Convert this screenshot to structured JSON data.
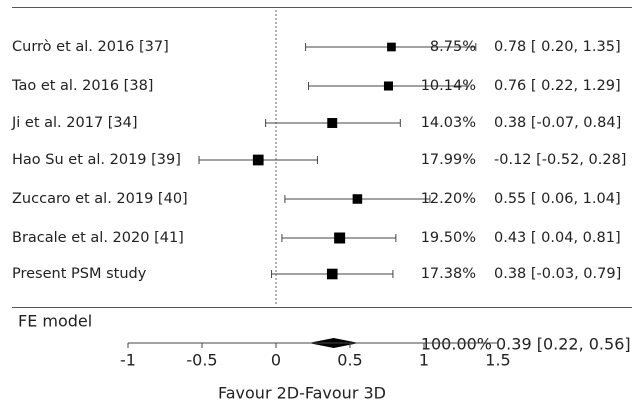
{
  "chart_data": {
    "type": "forest",
    "studies": [
      {
        "label": "Currò et al. 2016 [37]",
        "weight": "8.75%",
        "ci_text": "0.78 [ 0.20, 1.35]",
        "estimate": 0.78,
        "lower": 0.2,
        "upper": 1.35
      },
      {
        "label": "Tao et al. 2016 [38]",
        "weight": "10.14%",
        "ci_text": "0.76 [ 0.22, 1.29]",
        "estimate": 0.76,
        "lower": 0.22,
        "upper": 1.29
      },
      {
        "label": "Ji et al. 2017 [34]",
        "weight": "14.03%",
        "ci_text": "0.38 [-0.07, 0.84]",
        "estimate": 0.38,
        "lower": -0.07,
        "upper": 0.84
      },
      {
        "label": "Hao Su et al. 2019 [39]",
        "weight": "17.99%",
        "ci_text": "-0.12 [-0.52, 0.28]",
        "estimate": -0.12,
        "lower": -0.52,
        "upper": 0.28
      },
      {
        "label": "Zuccaro et al. 2019 [40]",
        "weight": "12.20%",
        "ci_text": "0.55 [ 0.06, 1.04]",
        "estimate": 0.55,
        "lower": 0.06,
        "upper": 1.04
      },
      {
        "label": "Bracale et al. 2020 [41]",
        "weight": "19.50%",
        "ci_text": "0.43 [ 0.04, 0.81]",
        "estimate": 0.43,
        "lower": 0.04,
        "upper": 0.81
      },
      {
        "label": "Present PSM study",
        "weight": "17.38%",
        "ci_text": "0.38 [-0.03, 0.79]",
        "estimate": 0.38,
        "lower": -0.03,
        "upper": 0.79
      }
    ],
    "pooled": {
      "label": "FE model",
      "weight": "100.00%",
      "ci_text": "0.39 [0.22, 0.56]",
      "estimate": 0.39,
      "lower": 0.22,
      "upper": 0.56
    },
    "x_ticks": [
      -1,
      -0.5,
      0,
      0.5,
      1,
      1.5
    ],
    "x_tick_labels": [
      "-1",
      "-0.5",
      "0",
      "0.5",
      "1",
      "1.5"
    ],
    "xlim": [
      -1,
      1.5
    ],
    "xlabel": "Favour 2D-Favour 3D",
    "reference_line": 0
  }
}
